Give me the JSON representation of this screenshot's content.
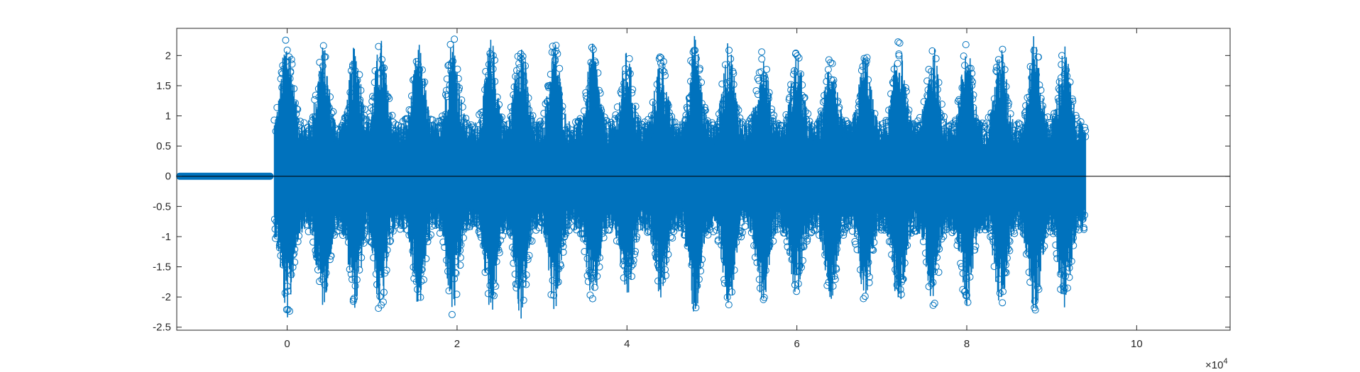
{
  "chart_data": {
    "type": "stem",
    "title": "",
    "xlabel": "",
    "ylabel": "",
    "xlim": [
      -13000,
      111000
    ],
    "ylim": [
      -2.55,
      2.45
    ],
    "x_exponent_base": "×10",
    "x_exponent_power": "4",
    "xticks": [
      {
        "value": 0,
        "label": "0"
      },
      {
        "value": 20000,
        "label": "2"
      },
      {
        "value": 40000,
        "label": "4"
      },
      {
        "value": 60000,
        "label": "6"
      },
      {
        "value": 80000,
        "label": "8"
      },
      {
        "value": 100000,
        "label": "10"
      }
    ],
    "yticks": [
      {
        "value": 2,
        "label": "2"
      },
      {
        "value": 1.5,
        "label": "1.5"
      },
      {
        "value": 1,
        "label": "1"
      },
      {
        "value": 0.5,
        "label": "0.5"
      },
      {
        "value": 0,
        "label": "0"
      },
      {
        "value": -0.5,
        "label": "-0.5"
      },
      {
        "value": -1,
        "label": "-1"
      },
      {
        "value": -1.5,
        "label": "-1.5"
      },
      {
        "value": -2,
        "label": "-2"
      },
      {
        "value": -2.5,
        "label": "-2.5"
      }
    ],
    "series_color": "#0072BD",
    "marker": "circle-open",
    "grid": false,
    "box": true,
    "signal": {
      "zero_segment": [
        -13000,
        -1500
      ],
      "active_segment": [
        -1500,
        94000
      ],
      "burst_period": 4200,
      "burst_centers": [
        0,
        4200,
        8000,
        11000,
        15500,
        19500,
        24000,
        27500,
        31500,
        36000,
        40000,
        44000,
        48000,
        52000,
        56000,
        60000,
        64000,
        68000,
        72000,
        76000,
        80000,
        84000,
        88000,
        91500
      ],
      "envelope_peaks": [
        2.4,
        2.2,
        2.2,
        2.3,
        2.2,
        2.35,
        2.3,
        2.4,
        2.25,
        2.2,
        2.1,
        2.05,
        2.35,
        2.25,
        2.1,
        2.1,
        2.05,
        2.1,
        2.25,
        2.2,
        2.2,
        2.2,
        2.35,
        2.2
      ],
      "baseline_amplitude": 0.9,
      "tail_amplitude": 1.15,
      "tail_start": 93000
    }
  }
}
